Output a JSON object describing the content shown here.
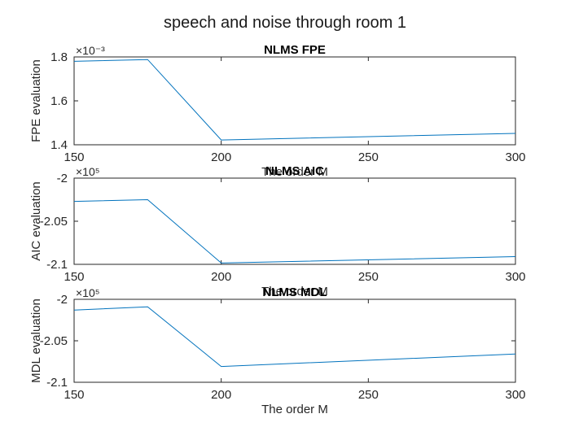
{
  "figure": {
    "title": "speech and noise through room 1"
  },
  "chart_data": [
    {
      "type": "line",
      "title": "NLMS FPE",
      "xlabel": "The order M",
      "ylabel": "FPE evaluation",
      "x": [
        150,
        175,
        200,
        300
      ],
      "y": [
        0.00178,
        0.001788,
        0.001422,
        0.001452
      ],
      "xlim": [
        150,
        300
      ],
      "ylim": [
        0.0014,
        0.0018
      ],
      "xticks": [
        150,
        200,
        250,
        300
      ],
      "xtick_labels": [
        "150",
        "200",
        "250",
        "300"
      ],
      "yticks": [
        0.0014,
        0.0016,
        0.0018
      ],
      "ytick_labels": [
        "1.4",
        "1.6",
        "1.8"
      ],
      "exponent_label": "×10⁻³",
      "line_color": "#0072BD",
      "grid": false
    },
    {
      "type": "line",
      "title": "NLMS AIC",
      "xlabel": "The order M",
      "ylabel": "AIC evaluation",
      "x": [
        150,
        175,
        200,
        300
      ],
      "y": [
        -202700,
        -202500,
        -209850,
        -209100
      ],
      "xlim": [
        150,
        300
      ],
      "ylim": [
        -210000,
        -200000
      ],
      "xticks": [
        150,
        200,
        250,
        300
      ],
      "xtick_labels": [
        "150",
        "200",
        "250",
        "300"
      ],
      "yticks": [
        -210000,
        -205000,
        -200000
      ],
      "ytick_labels": [
        "-2.1",
        "-2.05",
        "-2"
      ],
      "exponent_label": "×10⁵",
      "line_color": "#0072BD",
      "grid": false
    },
    {
      "type": "line",
      "title": "NLMS MDL",
      "xlabel": "The order M",
      "ylabel": "MDL evaluation",
      "x": [
        150,
        175,
        200,
        300
      ],
      "y": [
        -201300,
        -200900,
        -208100,
        -206600
      ],
      "xlim": [
        150,
        300
      ],
      "ylim": [
        -210000,
        -200000
      ],
      "xticks": [
        150,
        200,
        250,
        300
      ],
      "xtick_labels": [
        "150",
        "200",
        "250",
        "300"
      ],
      "yticks": [
        -210000,
        -205000,
        -200000
      ],
      "ytick_labels": [
        "-2.1",
        "-2.05",
        "-2"
      ],
      "exponent_label": "×10⁵",
      "line_color": "#0072BD",
      "grid": false
    }
  ]
}
